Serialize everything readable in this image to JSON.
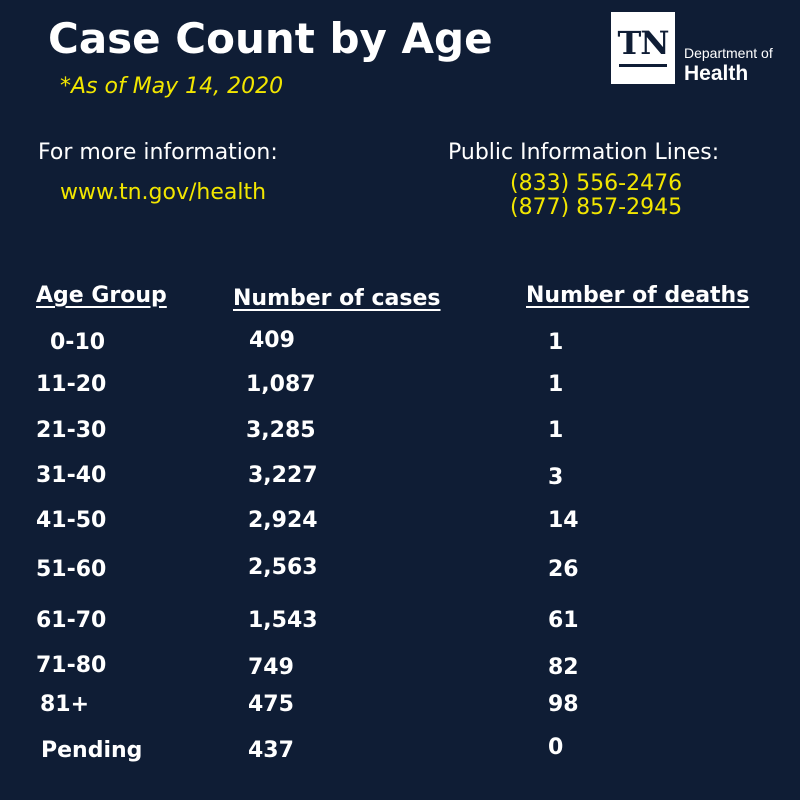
{
  "header": {
    "title": "Case Count by Age",
    "as_of": "*As of May 14, 2020"
  },
  "logo": {
    "initials": "TN",
    "department": "Department of",
    "health": "Health"
  },
  "info": {
    "more_label": "For more information:",
    "url": "www.tn.gov/health",
    "lines_label": "Public Information Lines:",
    "phones": [
      "(833) 556-2476",
      "(877) 857-2945"
    ]
  },
  "table": {
    "columns": [
      "Age Group",
      "Number of cases",
      "Number of deaths"
    ],
    "rows": [
      {
        "age": "0-10",
        "cases": "409",
        "deaths": "1"
      },
      {
        "age": "11-20",
        "cases": "1,087",
        "deaths": "1"
      },
      {
        "age": "21-30",
        "cases": "3,285",
        "deaths": "1"
      },
      {
        "age": "31-40",
        "cases": "3,227",
        "deaths": "3"
      },
      {
        "age": "41-50",
        "cases": "2,924",
        "deaths": "14"
      },
      {
        "age": "51-60",
        "cases": "2,563",
        "deaths": "26"
      },
      {
        "age": "61-70",
        "cases": "1,543",
        "deaths": "61"
      },
      {
        "age": "71-80",
        "cases": "749",
        "deaths": "82"
      },
      {
        "age": "81+",
        "cases": "475",
        "deaths": "98"
      },
      {
        "age": "Pending",
        "cases": "437",
        "deaths": "0"
      }
    ]
  },
  "colors": {
    "background": "#0f1d35",
    "accent": "#f2e600",
    "text": "#ffffff"
  }
}
